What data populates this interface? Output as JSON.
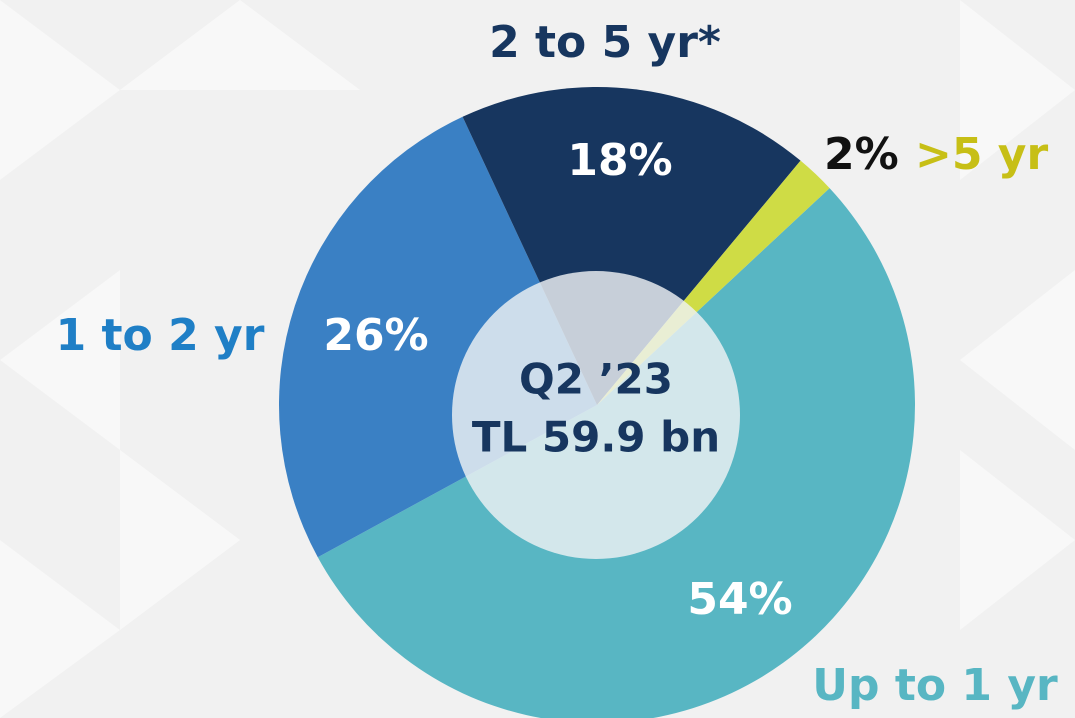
{
  "chart_data": {
    "type": "pie",
    "categories": [
      "Up to 1 yr",
      "1 to 2 yr",
      "2 to 5 yr*",
      ">5 yr"
    ],
    "values": [
      54,
      26,
      18,
      2
    ],
    "value_labels": [
      "54%",
      "26%",
      "18%",
      "2%"
    ],
    "colors": [
      "#58b6c3",
      "#3a80c4",
      "#17365f",
      "#cfdc45"
    ],
    "label_colors": [
      "#58b6c3",
      "#1f7fc6",
      "#17365f",
      "#c7bf16"
    ],
    "annotations": [
      "Q2 ’23",
      "TL 59.9 bn"
    ]
  }
}
